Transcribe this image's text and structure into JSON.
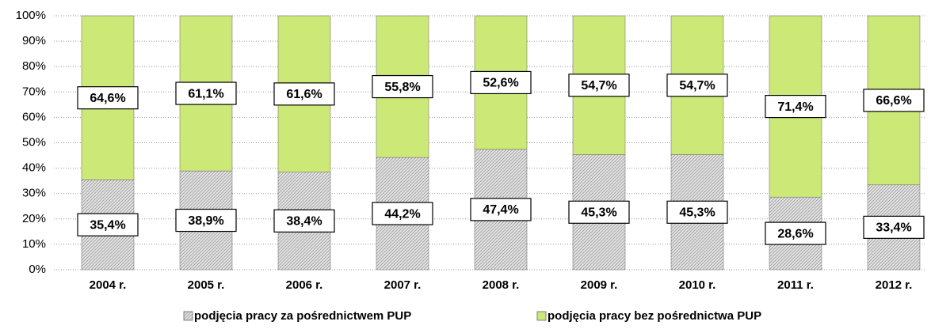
{
  "chart_data": {
    "type": "stacked_bar_100",
    "categories": [
      "2004 r.",
      "2005 r.",
      "2006 r.",
      "2007 r.",
      "2008 r.",
      "2009 r.",
      "2010 r.",
      "2011 r.",
      "2012 r."
    ],
    "series": [
      {
        "name": "podjęcia pracy za pośrednictwem PUP",
        "color": "#d0d0d0",
        "values": [
          35.4,
          38.9,
          38.4,
          44.2,
          47.4,
          45.3,
          45.3,
          28.6,
          33.4
        ],
        "value_labels": [
          "35,4%",
          "38,9%",
          "38,4%",
          "44,2%",
          "47,4%",
          "45,3%",
          "45,3%",
          "28,6%",
          "33,4%"
        ]
      },
      {
        "name": "podjęcia pracy bez pośrednictwa PUP",
        "color": "#cce877",
        "values": [
          64.6,
          61.1,
          61.6,
          55.8,
          52.6,
          54.7,
          54.7,
          71.4,
          66.6
        ],
        "value_labels": [
          "64,6%",
          "61,1%",
          "61,6%",
          "55,8%",
          "52,6%",
          "54,7%",
          "54,7%",
          "71,4%",
          "66,6%"
        ]
      }
    ],
    "ylim": [
      0,
      100
    ],
    "yticks": [
      {
        "value": 0,
        "label": "0%"
      },
      {
        "value": 10,
        "label": "10%"
      },
      {
        "value": 20,
        "label": "20%"
      },
      {
        "value": 30,
        "label": "30%"
      },
      {
        "value": 40,
        "label": "40%"
      },
      {
        "value": 50,
        "label": "50%"
      },
      {
        "value": 60,
        "label": "60%"
      },
      {
        "value": 70,
        "label": "70%"
      },
      {
        "value": 80,
        "label": "80%"
      },
      {
        "value": 90,
        "label": "90%"
      },
      {
        "value": 100,
        "label": "100%"
      }
    ],
    "grid": true,
    "legend": "bottom"
  }
}
